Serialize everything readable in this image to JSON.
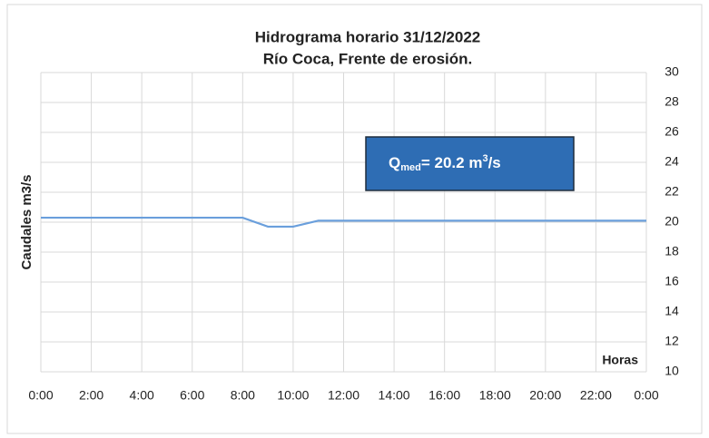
{
  "chart_data": {
    "type": "line",
    "title": [
      "Hidrograma horario 31/12/2022",
      "Río Coca, Frente de erosión."
    ],
    "ylabel": "Caudales m3/s",
    "xlabel": "Horas",
    "categories": [
      "0:00",
      null,
      "2:00",
      null,
      "4:00",
      null,
      "6:00",
      null,
      "8:00",
      null,
      "10:00",
      null,
      "12:00",
      null,
      "14:00",
      null,
      "16:00",
      null,
      "18:00",
      null,
      "20:00",
      null,
      "22:00",
      null,
      "0:00"
    ],
    "series": [
      {
        "color": "#6a9fdc",
        "values": [
          20.3,
          20.3,
          20.3,
          20.3,
          20.3,
          20.3,
          20.3,
          20.3,
          20.3,
          19.7,
          19.7,
          20.1,
          20.1,
          20.1,
          20.1,
          20.1,
          20.1,
          20.1,
          20.1,
          20.1,
          20.1,
          20.1,
          20.1,
          20.1,
          20.1
        ]
      }
    ],
    "ylim": [
      10,
      30
    ],
    "yticks": [
      10,
      12,
      14,
      16,
      18,
      20,
      22,
      24,
      26,
      28,
      30
    ],
    "grid": true,
    "annotation": {
      "q": "Q",
      "sub": "med",
      "text": "= 20.2 m",
      "sup": "3",
      "unit": "/s"
    }
  }
}
